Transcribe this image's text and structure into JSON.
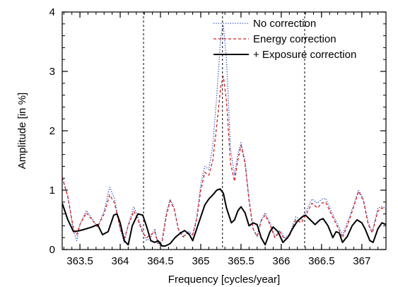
{
  "chart_data": {
    "type": "line",
    "title": "",
    "xlabel": "Frequency [cycles/year]",
    "ylabel": "Amplitude [in %]",
    "xlim": [
      363.28,
      367.3
    ],
    "ylim": [
      0,
      4
    ],
    "x_ticks": [
      363.5,
      364,
      364.5,
      365,
      365.5,
      366,
      366.5,
      367
    ],
    "x_tick_labels": [
      "363.5",
      "364",
      "364.5",
      "365",
      "365.5",
      "366",
      "366.5",
      "367"
    ],
    "y_ticks": [
      0,
      1,
      2,
      3,
      4
    ],
    "y_tick_labels": [
      "0",
      "1",
      "2",
      "3",
      "4"
    ],
    "x_minor_step": 0.1,
    "y_minor_step": 0.2,
    "grid": false,
    "legend_position": "top-right",
    "vlines": [
      364.29,
      365.27,
      366.29
    ],
    "series": [
      {
        "name": "No correction",
        "color": "#1f3fbf",
        "style": "dotted",
        "points": [
          [
            363.28,
            1.22
          ],
          [
            363.35,
            0.9
          ],
          [
            363.42,
            0.3
          ],
          [
            363.46,
            0.15
          ],
          [
            363.5,
            0.42
          ],
          [
            363.58,
            0.66
          ],
          [
            363.65,
            0.52
          ],
          [
            363.72,
            0.38
          ],
          [
            363.8,
            0.65
          ],
          [
            363.87,
            1.05
          ],
          [
            363.93,
            0.85
          ],
          [
            364.0,
            0.35
          ],
          [
            364.05,
            0.12
          ],
          [
            364.1,
            0.42
          ],
          [
            364.17,
            0.72
          ],
          [
            364.22,
            0.55
          ],
          [
            364.28,
            0.3
          ],
          [
            364.33,
            0.15
          ],
          [
            364.38,
            0.2
          ],
          [
            364.43,
            0.35
          ],
          [
            364.47,
            0.1
          ],
          [
            364.52,
            0.15
          ],
          [
            364.57,
            0.6
          ],
          [
            364.62,
            0.85
          ],
          [
            364.67,
            0.7
          ],
          [
            364.72,
            0.35
          ],
          [
            364.78,
            0.2
          ],
          [
            364.85,
            0.3
          ],
          [
            364.9,
            0.25
          ],
          [
            364.95,
            0.55
          ],
          [
            365.0,
            1.1
          ],
          [
            365.05,
            1.4
          ],
          [
            365.1,
            1.35
          ],
          [
            365.15,
            1.75
          ],
          [
            365.2,
            2.6
          ],
          [
            365.25,
            3.6
          ],
          [
            365.28,
            3.78
          ],
          [
            365.32,
            3.2
          ],
          [
            365.37,
            1.7
          ],
          [
            365.42,
            1.25
          ],
          [
            365.46,
            1.6
          ],
          [
            365.5,
            1.8
          ],
          [
            365.55,
            1.5
          ],
          [
            365.6,
            0.85
          ],
          [
            365.65,
            0.35
          ],
          [
            365.7,
            0.22
          ],
          [
            365.75,
            0.5
          ],
          [
            365.8,
            0.62
          ],
          [
            365.86,
            0.45
          ],
          [
            365.92,
            0.22
          ],
          [
            365.98,
            0.32
          ],
          [
            366.04,
            0.2
          ],
          [
            366.1,
            0.25
          ],
          [
            366.18,
            0.55
          ],
          [
            366.25,
            0.5
          ],
          [
            366.32,
            0.68
          ],
          [
            366.38,
            0.85
          ],
          [
            366.45,
            0.78
          ],
          [
            366.5,
            0.85
          ],
          [
            366.55,
            0.86
          ],
          [
            366.62,
            0.65
          ],
          [
            366.7,
            0.42
          ],
          [
            366.76,
            0.25
          ],
          [
            366.82,
            0.45
          ],
          [
            366.9,
            0.75
          ],
          [
            366.96,
            1.0
          ],
          [
            367.02,
            0.85
          ],
          [
            367.08,
            0.45
          ],
          [
            367.13,
            0.3
          ],
          [
            367.2,
            0.7
          ],
          [
            367.25,
            0.72
          ],
          [
            367.3,
            0.7
          ]
        ]
      },
      {
        "name": "Energy correction",
        "color": "#d81e1e",
        "style": "dashed",
        "points": [
          [
            363.28,
            1.22
          ],
          [
            363.35,
            0.88
          ],
          [
            363.42,
            0.35
          ],
          [
            363.46,
            0.25
          ],
          [
            363.5,
            0.42
          ],
          [
            363.58,
            0.62
          ],
          [
            363.65,
            0.5
          ],
          [
            363.72,
            0.38
          ],
          [
            363.8,
            0.6
          ],
          [
            363.87,
            0.92
          ],
          [
            363.93,
            0.78
          ],
          [
            364.0,
            0.35
          ],
          [
            364.05,
            0.18
          ],
          [
            364.1,
            0.4
          ],
          [
            364.17,
            0.65
          ],
          [
            364.22,
            0.5
          ],
          [
            364.28,
            0.28
          ],
          [
            364.33,
            0.2
          ],
          [
            364.38,
            0.25
          ],
          [
            364.43,
            0.3
          ],
          [
            364.47,
            0.08
          ],
          [
            364.52,
            0.12
          ],
          [
            364.57,
            0.55
          ],
          [
            364.62,
            0.82
          ],
          [
            364.67,
            0.68
          ],
          [
            364.72,
            0.35
          ],
          [
            364.78,
            0.22
          ],
          [
            364.85,
            0.28
          ],
          [
            364.9,
            0.25
          ],
          [
            364.95,
            0.5
          ],
          [
            365.0,
            1.0
          ],
          [
            365.05,
            1.3
          ],
          [
            365.1,
            1.25
          ],
          [
            365.15,
            1.5
          ],
          [
            365.2,
            2.1
          ],
          [
            365.25,
            2.75
          ],
          [
            365.28,
            2.92
          ],
          [
            365.32,
            2.5
          ],
          [
            365.37,
            1.45
          ],
          [
            365.42,
            1.15
          ],
          [
            365.46,
            1.5
          ],
          [
            365.5,
            1.75
          ],
          [
            365.55,
            1.45
          ],
          [
            365.6,
            0.82
          ],
          [
            365.65,
            0.35
          ],
          [
            365.7,
            0.22
          ],
          [
            365.75,
            0.48
          ],
          [
            365.8,
            0.58
          ],
          [
            365.86,
            0.42
          ],
          [
            365.92,
            0.2
          ],
          [
            365.98,
            0.3
          ],
          [
            366.04,
            0.18
          ],
          [
            366.1,
            0.22
          ],
          [
            366.18,
            0.5
          ],
          [
            366.25,
            0.45
          ],
          [
            366.32,
            0.62
          ],
          [
            366.38,
            0.78
          ],
          [
            366.45,
            0.7
          ],
          [
            366.5,
            0.78
          ],
          [
            366.55,
            0.8
          ],
          [
            366.62,
            0.6
          ],
          [
            366.7,
            0.38
          ],
          [
            366.76,
            0.2
          ],
          [
            366.82,
            0.4
          ],
          [
            366.9,
            0.72
          ],
          [
            366.96,
            0.98
          ],
          [
            367.02,
            0.82
          ],
          [
            367.08,
            0.42
          ],
          [
            367.13,
            0.28
          ],
          [
            367.2,
            0.65
          ],
          [
            367.25,
            0.7
          ],
          [
            367.3,
            0.68
          ]
        ]
      },
      {
        "name": "+ Exposure correction",
        "color": "#000000",
        "style": "solid",
        "points": [
          [
            363.28,
            0.78
          ],
          [
            363.35,
            0.5
          ],
          [
            363.42,
            0.3
          ],
          [
            363.5,
            0.32
          ],
          [
            363.58,
            0.35
          ],
          [
            363.65,
            0.38
          ],
          [
            363.72,
            0.42
          ],
          [
            363.78,
            0.25
          ],
          [
            363.85,
            0.3
          ],
          [
            363.92,
            0.58
          ],
          [
            363.96,
            0.6
          ],
          [
            364.0,
            0.45
          ],
          [
            364.05,
            0.15
          ],
          [
            364.1,
            0.08
          ],
          [
            364.15,
            0.4
          ],
          [
            364.22,
            0.6
          ],
          [
            364.28,
            0.58
          ],
          [
            364.33,
            0.38
          ],
          [
            364.38,
            0.15
          ],
          [
            364.43,
            0.12
          ],
          [
            364.47,
            0.15
          ],
          [
            364.52,
            0.06
          ],
          [
            364.56,
            0.06
          ],
          [
            364.62,
            0.1
          ],
          [
            364.68,
            0.2
          ],
          [
            364.75,
            0.28
          ],
          [
            364.8,
            0.32
          ],
          [
            364.86,
            0.25
          ],
          [
            364.9,
            0.15
          ],
          [
            364.95,
            0.35
          ],
          [
            365.0,
            0.55
          ],
          [
            365.05,
            0.75
          ],
          [
            365.1,
            0.85
          ],
          [
            365.15,
            0.92
          ],
          [
            365.2,
            1.0
          ],
          [
            365.24,
            1.02
          ],
          [
            365.28,
            0.95
          ],
          [
            365.32,
            0.7
          ],
          [
            365.38,
            0.45
          ],
          [
            365.42,
            0.5
          ],
          [
            365.46,
            0.65
          ],
          [
            365.5,
            0.72
          ],
          [
            365.55,
            0.62
          ],
          [
            365.6,
            0.4
          ],
          [
            365.65,
            0.45
          ],
          [
            365.7,
            0.42
          ],
          [
            365.75,
            0.2
          ],
          [
            365.8,
            0.08
          ],
          [
            365.86,
            0.3
          ],
          [
            365.9,
            0.38
          ],
          [
            365.96,
            0.3
          ],
          [
            366.02,
            0.12
          ],
          [
            366.08,
            0.2
          ],
          [
            366.14,
            0.35
          ],
          [
            366.2,
            0.48
          ],
          [
            366.26,
            0.55
          ],
          [
            366.3,
            0.58
          ],
          [
            366.36,
            0.5
          ],
          [
            366.42,
            0.42
          ],
          [
            366.48,
            0.5
          ],
          [
            366.52,
            0.52
          ],
          [
            366.58,
            0.4
          ],
          [
            366.64,
            0.2
          ],
          [
            366.68,
            0.3
          ],
          [
            366.72,
            0.28
          ],
          [
            366.76,
            0.12
          ],
          [
            366.82,
            0.22
          ],
          [
            366.88,
            0.4
          ],
          [
            366.94,
            0.5
          ],
          [
            367.0,
            0.45
          ],
          [
            367.04,
            0.35
          ],
          [
            367.1,
            0.15
          ],
          [
            367.14,
            0.12
          ],
          [
            367.2,
            0.35
          ],
          [
            367.25,
            0.45
          ],
          [
            367.3,
            0.42
          ]
        ]
      }
    ]
  }
}
